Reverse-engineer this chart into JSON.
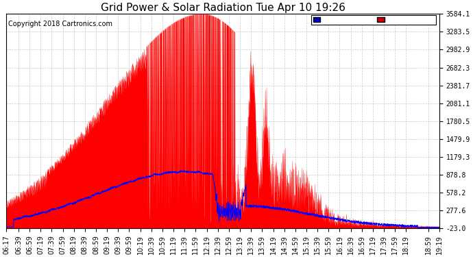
{
  "title": "Grid Power & Solar Radiation Tue Apr 10 19:26",
  "copyright": "Copyright 2018 Cartronics.com",
  "yticks": [
    -23.0,
    277.6,
    578.2,
    878.8,
    1179.3,
    1479.9,
    1780.5,
    2081.1,
    2381.7,
    2682.3,
    2982.9,
    3283.5,
    3584.1
  ],
  "ylim": [
    -23.0,
    3584.1
  ],
  "xtick_labels": [
    "06:17",
    "06:39",
    "06:59",
    "07:19",
    "07:39",
    "07:59",
    "08:19",
    "08:39",
    "08:59",
    "09:19",
    "09:39",
    "09:59",
    "10:19",
    "10:39",
    "10:59",
    "11:19",
    "11:39",
    "11:59",
    "12:19",
    "12:39",
    "12:59",
    "13:19",
    "13:39",
    "13:59",
    "14:19",
    "14:39",
    "14:59",
    "15:19",
    "15:39",
    "15:59",
    "16:19",
    "16:39",
    "16:59",
    "17:19",
    "17:39",
    "17:59",
    "18:19",
    "18:59",
    "19:19"
  ],
  "background_color": "#ffffff",
  "grid_color": "#bbbbbb",
  "red_fill_color": "#ff0000",
  "blue_line_color": "#0000ff",
  "legend_radiation_bg": "#0000cc",
  "legend_grid_bg": "#cc0000",
  "title_fontsize": 11,
  "copyright_fontsize": 7,
  "tick_fontsize": 7
}
